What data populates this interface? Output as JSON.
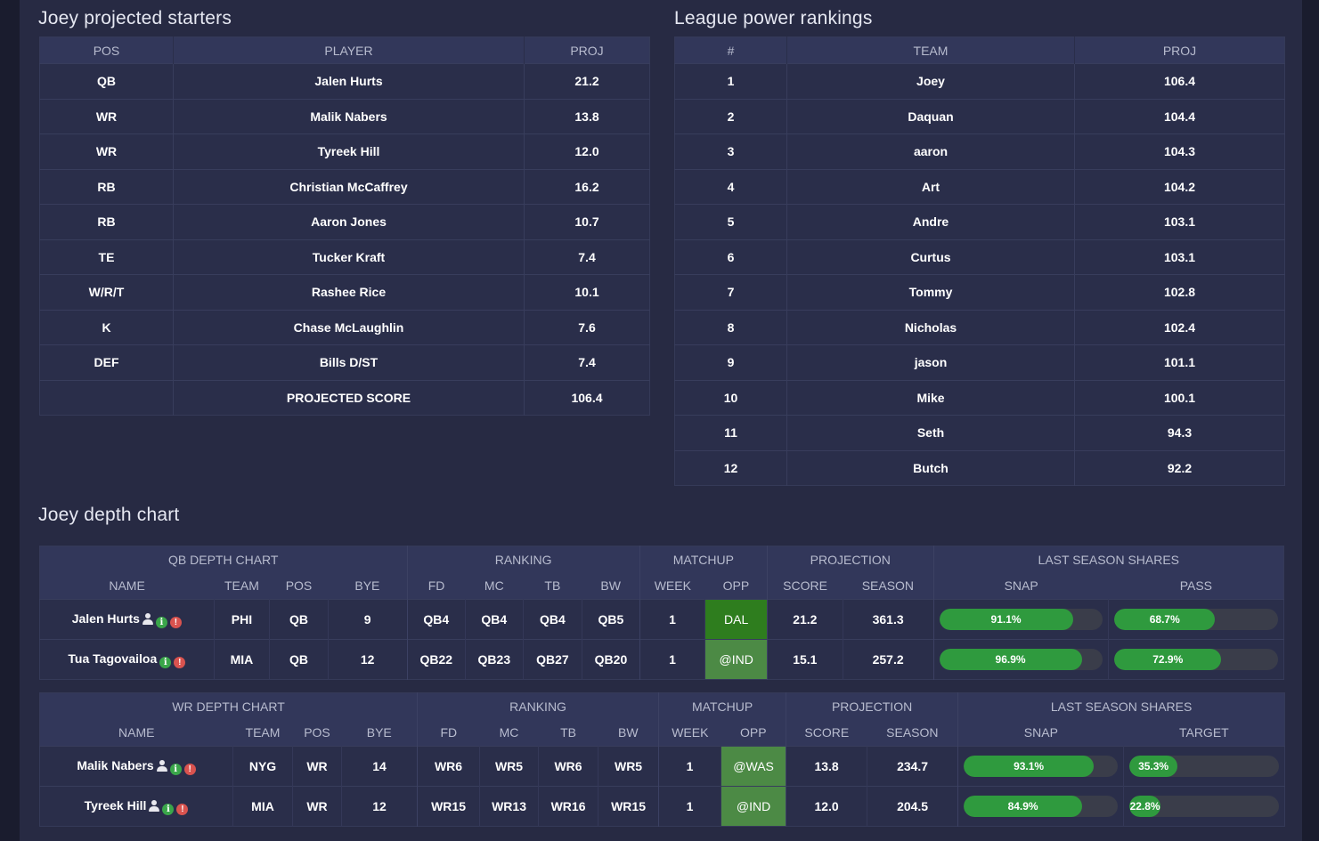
{
  "starters": {
    "title": "Joey projected starters",
    "headers": [
      "POS",
      "PLAYER",
      "PROJ"
    ],
    "rows": [
      {
        "pos": "QB",
        "player": "Jalen Hurts",
        "proj": "21.2"
      },
      {
        "pos": "WR",
        "player": "Malik Nabers",
        "proj": "13.8"
      },
      {
        "pos": "WR",
        "player": "Tyreek Hill",
        "proj": "12.0"
      },
      {
        "pos": "RB",
        "player": "Christian McCaffrey",
        "proj": "16.2"
      },
      {
        "pos": "RB",
        "player": "Aaron Jones",
        "proj": "10.7"
      },
      {
        "pos": "TE",
        "player": "Tucker Kraft",
        "proj": "7.4"
      },
      {
        "pos": "W/R/T",
        "player": "Rashee Rice",
        "proj": "10.1"
      },
      {
        "pos": "K",
        "player": "Chase McLaughlin",
        "proj": "7.6"
      },
      {
        "pos": "DEF",
        "player": "Bills D/ST",
        "proj": "7.4"
      }
    ],
    "total_label": "PROJECTED SCORE",
    "total_value": "106.4"
  },
  "rankings": {
    "title": "League power rankings",
    "headers": [
      "#",
      "TEAM",
      "PROJ"
    ],
    "rows": [
      {
        "rank": "1",
        "team": "Joey",
        "proj": "106.4"
      },
      {
        "rank": "2",
        "team": "Daquan",
        "proj": "104.4"
      },
      {
        "rank": "3",
        "team": "aaron",
        "proj": "104.3"
      },
      {
        "rank": "4",
        "team": "Art",
        "proj": "104.2"
      },
      {
        "rank": "5",
        "team": "Andre",
        "proj": "103.1"
      },
      {
        "rank": "6",
        "team": "Curtus",
        "proj": "103.1"
      },
      {
        "rank": "7",
        "team": "Tommy",
        "proj": "102.8"
      },
      {
        "rank": "8",
        "team": "Nicholas",
        "proj": "102.4"
      },
      {
        "rank": "9",
        "team": "jason",
        "proj": "101.1"
      },
      {
        "rank": "10",
        "team": "Mike",
        "proj": "100.1"
      },
      {
        "rank": "11",
        "team": "Seth",
        "proj": "94.3"
      },
      {
        "rank": "12",
        "team": "Butch",
        "proj": "92.2"
      }
    ]
  },
  "depth": {
    "title": "Joey depth chart",
    "qb": {
      "group_headers": {
        "chart": "QB DEPTH CHART",
        "ranking": "RANKING",
        "matchup": "MATCHUP",
        "projection": "PROJECTION",
        "shares": "LAST SEASON SHARES"
      },
      "col_headers": {
        "name": "NAME",
        "team": "TEAM",
        "pos": "POS",
        "bye": "BYE",
        "fd": "FD",
        "mc": "MC",
        "tb": "TB",
        "bw": "BW",
        "week": "WEEK",
        "opp": "OPP",
        "score": "SCORE",
        "season": "SEASON",
        "share1": "SNAP",
        "share2": "PASS"
      },
      "rows": [
        {
          "name": "Jalen Hurts",
          "person_icon": true,
          "team": "PHI",
          "pos": "QB",
          "bye": "9",
          "fd": "QB4",
          "mc": "QB4",
          "tb": "QB4",
          "bw": "QB5",
          "week": "1",
          "opp": "DAL",
          "opp_strength": "strong",
          "score": "21.2",
          "season": "361.3",
          "share1_label": "91.1%",
          "share1_value": 91.1,
          "share2_label": "68.7%",
          "share2_value": 68.7
        },
        {
          "name": "Tua Tagovailoa",
          "person_icon": false,
          "team": "MIA",
          "pos": "QB",
          "bye": "12",
          "fd": "QB22",
          "mc": "QB23",
          "tb": "QB27",
          "bw": "QB20",
          "week": "1",
          "opp": "@IND",
          "opp_strength": "mid",
          "score": "15.1",
          "season": "257.2",
          "share1_label": "96.9%",
          "share1_value": 96.9,
          "share2_label": "72.9%",
          "share2_value": 72.9
        }
      ]
    },
    "wr": {
      "group_headers": {
        "chart": "WR DEPTH CHART",
        "ranking": "RANKING",
        "matchup": "MATCHUP",
        "projection": "PROJECTION",
        "shares": "LAST SEASON SHARES"
      },
      "col_headers": {
        "name": "NAME",
        "team": "TEAM",
        "pos": "POS",
        "bye": "BYE",
        "fd": "FD",
        "mc": "MC",
        "tb": "TB",
        "bw": "BW",
        "week": "WEEK",
        "opp": "OPP",
        "score": "SCORE",
        "season": "SEASON",
        "share1": "SNAP",
        "share2": "TARGET"
      },
      "rows": [
        {
          "name": "Malik Nabers",
          "person_icon": true,
          "team": "NYG",
          "pos": "WR",
          "bye": "14",
          "fd": "WR6",
          "mc": "WR5",
          "tb": "WR6",
          "bw": "WR5",
          "week": "1",
          "opp": "@WAS",
          "opp_strength": "mid",
          "score": "13.8",
          "season": "234.7",
          "share1_label": "93.1%",
          "share1_value": 93.1,
          "share2_label": "35.3%",
          "share2_value": 35.3
        },
        {
          "name": "Tyreek Hill",
          "person_icon": true,
          "team": "MIA",
          "pos": "WR",
          "bye": "12",
          "fd": "WR15",
          "mc": "WR13",
          "tb": "WR16",
          "bw": "WR15",
          "week": "1",
          "opp": "@IND",
          "opp_strength": "mid",
          "score": "12.0",
          "season": "204.5",
          "share1_label": "84.9%",
          "share1_value": 84.9,
          "share2_label": "22.8%",
          "share2_value": 22.8
        }
      ]
    }
  },
  "colors": {
    "background": "#272a43",
    "header": "#32375a",
    "bar_fill": "#2f9a3e",
    "bar_track": "#3a3d4a",
    "opp_strong": "#2e7d1e",
    "opp_mid": "#4c8a45",
    "info_icon": "#3aa64a",
    "alert_icon": "#d9534f"
  }
}
